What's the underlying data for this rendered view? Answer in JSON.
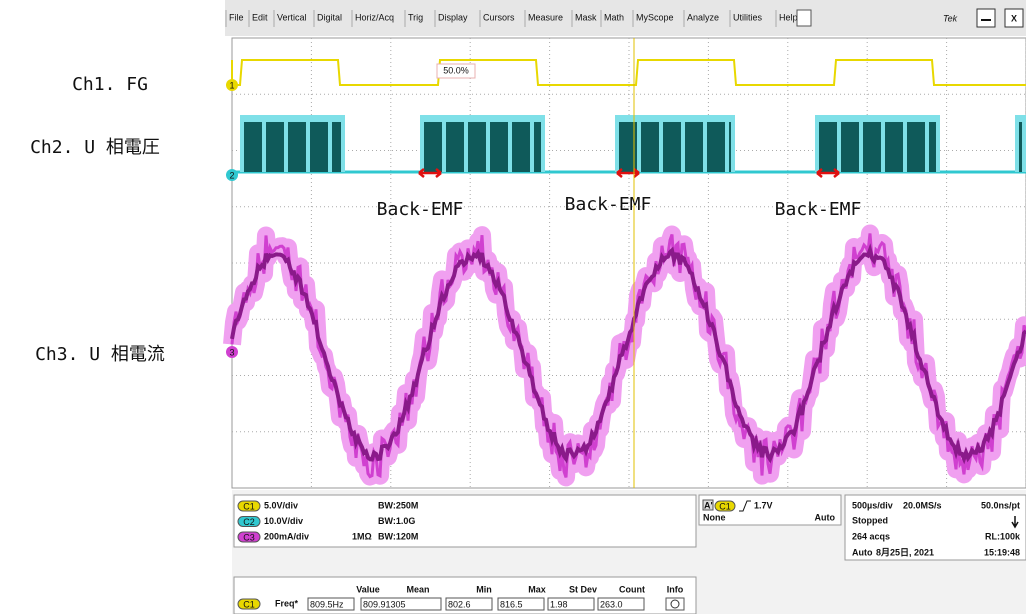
{
  "menu": [
    "File",
    "Edit",
    "Vertical",
    "Digital",
    "Horiz/Acq",
    "Trig",
    "Display",
    "Cursors",
    "Measure",
    "Mask",
    "Math",
    "MyScope",
    "Analyze",
    "Utilities",
    "Help"
  ],
  "brand": "Tek",
  "close": "X",
  "annotations": {
    "ch1": "Ch1. FG",
    "ch2": "Ch2. U 相電圧",
    "ch3": "Ch3. U 相電流",
    "back_emf": [
      "Back-EMF",
      "Back-EMF",
      "Back-EMF"
    ]
  },
  "screen": {
    "markers": [
      "1",
      "2",
      "3"
    ],
    "duty": "50.0%"
  },
  "channels": [
    {
      "badge": "C1",
      "scale": "5.0V/div",
      "impedance": "",
      "bw": "BW:250M"
    },
    {
      "badge": "C2",
      "scale": "10.0V/div",
      "impedance": "",
      "bw": "BW:1.0G"
    },
    {
      "badge": "C3",
      "scale": "200mA/div",
      "impedance": "1MΩ",
      "bw": "BW:120M"
    }
  ],
  "trigger": {
    "a": "A'",
    "badge": "C1",
    "level": "1.7V",
    "source": "None",
    "mode": "Auto"
  },
  "acquisition": {
    "timebase": "500µs/div",
    "rate": "20.0MS/s",
    "resolution": "50.0ns/pt",
    "state": "Stopped",
    "acqs": "264 acqs",
    "record": "RL:100k",
    "mode": "Auto",
    "date": "8月25日, 2021",
    "time": "15:19:48"
  },
  "measure": {
    "headers": [
      "Value",
      "Mean",
      "Min",
      "Max",
      "St Dev",
      "Count",
      "Info"
    ],
    "row": {
      "badge": "C1",
      "name": "Freq*",
      "cells": [
        "809.5Hz",
        "809.91305",
        "802.6",
        "816.5",
        "1.98",
        "263.0"
      ]
    }
  }
}
